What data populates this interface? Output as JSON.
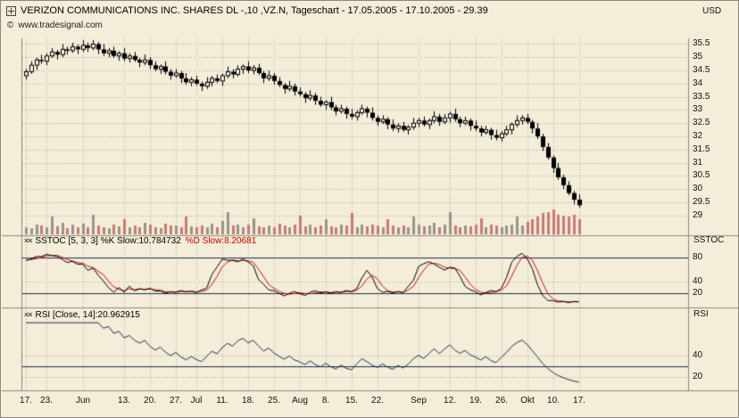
{
  "header": {
    "title": "VERIZON COMMUNICATIONS INC. SHARES DL -,10 ,VZ.N, Tageschart - 17.05.2005 - 17.10.2005 - 29.39",
    "currency": "USD",
    "copyright": "www.tradesignal.com"
  },
  "icons": {
    "copyright": "©",
    "indicator": "××"
  },
  "panels": {
    "sstoc": {
      "label": "SSTOC",
      "header_k": "SSTOC [5, 3, 3] %K Slow:10.784732",
      "header_d": "%D Slow:8.20681"
    },
    "rsi": {
      "label": "RSI",
      "header": "RSI [Close, 14]:20.962915"
    }
  },
  "colors": {
    "background": "#f3edd9",
    "grid": "#b2aa92",
    "candle": "#000000",
    "candle_up_fill": "#f7f2e2",
    "volume_up": "#98948a",
    "volume_down": "#c67b74",
    "threshold": "#1f2d52",
    "sstoc_k": "#000000",
    "sstoc_d": "#cc1111",
    "rsi_line": "#1f2d52",
    "separator": "#8f8977",
    "header_red": "#cc0000"
  },
  "chart_data": {
    "type": "candlestick",
    "title": "VERIZON COMMUNICATIONS INC. SHARES DL -,10 ,VZ.N, Tageschart",
    "date_range": "17.05.2005 - 17.10.2005",
    "last_price": 29.39,
    "unit": "USD",
    "price_ylim": [
      29,
      35.5
    ],
    "price_yticks": [
      35.5,
      35,
      34.5,
      34,
      33.5,
      33,
      32.5,
      32,
      31.5,
      31,
      30.5,
      30,
      29.5,
      29
    ],
    "x_ticks": [
      [
        "17.",
        0
      ],
      [
        "23.",
        4
      ],
      [
        "Jun",
        11
      ],
      [
        "13.",
        19
      ],
      [
        "20.",
        24
      ],
      [
        "27.",
        29
      ],
      [
        "Jul",
        33
      ],
      [
        "11.",
        38
      ],
      [
        "18.",
        43
      ],
      [
        "25.",
        48
      ],
      [
        "Aug",
        53
      ],
      [
        "8.",
        58
      ],
      [
        "15.",
        63
      ],
      [
        "22.",
        68
      ],
      [
        "Sep",
        76
      ],
      [
        "12.",
        82
      ],
      [
        "19.",
        87
      ],
      [
        "26.",
        92
      ],
      [
        "Okt",
        97
      ],
      [
        "10.",
        102
      ],
      [
        "17.",
        107
      ]
    ],
    "candles": [
      [
        34.3,
        34.55,
        34.15,
        34.45
      ],
      [
        34.45,
        34.85,
        34.37,
        34.7
      ],
      [
        34.7,
        34.98,
        34.52,
        34.9
      ],
      [
        34.9,
        35.1,
        34.75,
        34.85
      ],
      [
        34.85,
        35.15,
        34.7,
        35.05
      ],
      [
        35.05,
        35.35,
        34.97,
        35.2
      ],
      [
        35.2,
        35.28,
        34.92,
        35.1
      ],
      [
        35.1,
        35.5,
        35.0,
        35.3
      ],
      [
        35.3,
        35.4,
        35.1,
        35.25
      ],
      [
        35.25,
        35.55,
        35.17,
        35.4
      ],
      [
        35.4,
        35.48,
        35.12,
        35.3
      ],
      [
        35.3,
        35.65,
        35.2,
        35.45
      ],
      [
        35.45,
        35.55,
        35.2,
        35.35
      ],
      [
        35.35,
        35.65,
        35.27,
        35.5
      ],
      [
        35.5,
        35.58,
        35.12,
        35.3
      ],
      [
        35.3,
        35.5,
        35.05,
        35.15
      ],
      [
        35.15,
        35.35,
        35.0,
        35.25
      ],
      [
        35.25,
        35.4,
        34.97,
        35.05
      ],
      [
        35.05,
        35.23,
        34.87,
        35.15
      ],
      [
        35.15,
        35.35,
        34.85,
        34.95
      ],
      [
        34.95,
        35.15,
        34.8,
        35.05
      ],
      [
        35.05,
        35.2,
        34.82,
        34.9
      ],
      [
        34.9,
        34.98,
        34.62,
        34.8
      ],
      [
        34.8,
        35.1,
        34.7,
        34.9
      ],
      [
        34.9,
        35.0,
        34.55,
        34.7
      ],
      [
        34.7,
        34.85,
        34.47,
        34.55
      ],
      [
        34.55,
        34.73,
        34.37,
        34.65
      ],
      [
        34.65,
        34.85,
        34.35,
        34.45
      ],
      [
        34.45,
        34.55,
        34.15,
        34.3
      ],
      [
        34.3,
        34.55,
        34.22,
        34.4
      ],
      [
        34.4,
        34.48,
        34.02,
        34.2
      ],
      [
        34.2,
        34.4,
        33.95,
        34.05
      ],
      [
        34.05,
        34.25,
        33.9,
        34.15
      ],
      [
        34.15,
        34.3,
        33.92,
        34.0
      ],
      [
        34.0,
        34.08,
        33.72,
        33.9
      ],
      [
        33.9,
        34.25,
        33.8,
        34.05
      ],
      [
        34.05,
        34.3,
        33.9,
        34.2
      ],
      [
        34.2,
        34.35,
        34.02,
        34.1
      ],
      [
        34.1,
        34.38,
        33.92,
        34.3
      ],
      [
        34.3,
        34.65,
        34.2,
        34.45
      ],
      [
        34.45,
        34.55,
        34.2,
        34.35
      ],
      [
        34.35,
        34.7,
        34.27,
        34.55
      ],
      [
        34.55,
        34.73,
        34.37,
        34.65
      ],
      [
        34.65,
        34.85,
        34.4,
        34.5
      ],
      [
        34.5,
        34.7,
        34.35,
        34.6
      ],
      [
        34.6,
        34.75,
        34.32,
        34.4
      ],
      [
        34.4,
        34.48,
        34.02,
        34.2
      ],
      [
        34.2,
        34.5,
        34.1,
        34.3
      ],
      [
        34.3,
        34.4,
        33.95,
        34.1
      ],
      [
        34.1,
        34.25,
        33.87,
        33.95
      ],
      [
        33.95,
        34.03,
        33.62,
        33.8
      ],
      [
        33.8,
        34.1,
        33.7,
        33.9
      ],
      [
        33.9,
        34.0,
        33.55,
        33.7
      ],
      [
        33.7,
        33.85,
        33.52,
        33.6
      ],
      [
        33.6,
        33.68,
        33.27,
        33.45
      ],
      [
        33.45,
        33.75,
        33.35,
        33.55
      ],
      [
        33.55,
        33.65,
        33.2,
        33.35
      ],
      [
        33.35,
        33.5,
        33.12,
        33.2
      ],
      [
        33.2,
        33.38,
        33.02,
        33.3
      ],
      [
        33.3,
        33.5,
        33.0,
        33.1
      ],
      [
        33.1,
        33.2,
        32.8,
        32.95
      ],
      [
        32.95,
        33.2,
        32.87,
        33.05
      ],
      [
        33.05,
        33.13,
        32.67,
        32.85
      ],
      [
        32.85,
        33.05,
        32.65,
        32.75
      ],
      [
        32.75,
        33.0,
        32.6,
        32.9
      ],
      [
        32.9,
        33.2,
        32.82,
        33.05
      ],
      [
        33.05,
        33.13,
        32.72,
        32.9
      ],
      [
        32.9,
        33.1,
        32.6,
        32.7
      ],
      [
        32.7,
        32.8,
        32.4,
        32.55
      ],
      [
        32.55,
        32.8,
        32.47,
        32.65
      ],
      [
        32.65,
        32.73,
        32.27,
        32.45
      ],
      [
        32.45,
        32.65,
        32.2,
        32.3
      ],
      [
        32.3,
        32.5,
        32.15,
        32.4
      ],
      [
        32.4,
        32.55,
        32.17,
        32.25
      ],
      [
        32.25,
        32.43,
        32.07,
        32.35
      ],
      [
        32.35,
        32.7,
        32.25,
        32.5
      ],
      [
        32.5,
        32.7,
        32.35,
        32.6
      ],
      [
        32.6,
        32.75,
        32.37,
        32.45
      ],
      [
        32.45,
        32.68,
        32.27,
        32.6
      ],
      [
        32.6,
        32.95,
        32.5,
        32.75
      ],
      [
        32.75,
        32.85,
        32.4,
        32.55
      ],
      [
        32.55,
        32.85,
        32.47,
        32.7
      ],
      [
        32.7,
        32.93,
        32.52,
        32.85
      ],
      [
        32.85,
        33.05,
        32.55,
        32.65
      ],
      [
        32.65,
        32.75,
        32.35,
        32.5
      ],
      [
        32.5,
        32.75,
        32.42,
        32.6
      ],
      [
        32.6,
        32.68,
        32.22,
        32.4
      ],
      [
        32.4,
        32.6,
        32.2,
        32.3
      ],
      [
        32.3,
        32.4,
        32.0,
        32.15
      ],
      [
        32.15,
        32.4,
        32.07,
        32.25
      ],
      [
        32.25,
        32.33,
        31.87,
        32.05
      ],
      [
        32.05,
        32.25,
        31.85,
        31.95
      ],
      [
        31.95,
        32.2,
        31.8,
        32.1
      ],
      [
        32.1,
        32.4,
        32.02,
        32.25
      ],
      [
        32.25,
        32.53,
        32.07,
        32.45
      ],
      [
        32.45,
        32.8,
        32.35,
        32.6
      ],
      [
        32.6,
        32.8,
        32.45,
        32.7
      ],
      [
        32.7,
        32.85,
        32.47,
        32.55
      ],
      [
        32.55,
        32.63,
        32.12,
        32.3
      ],
      [
        32.3,
        32.5,
        31.9,
        32.0
      ],
      [
        32.0,
        32.1,
        31.45,
        31.6
      ],
      [
        31.6,
        31.75,
        31.12,
        31.2
      ],
      [
        31.2,
        31.28,
        30.62,
        30.8
      ],
      [
        30.8,
        31.0,
        30.35,
        30.45
      ],
      [
        30.45,
        30.55,
        30.0,
        30.15
      ],
      [
        30.15,
        30.3,
        29.77,
        29.85
      ],
      [
        29.85,
        29.93,
        29.42,
        29.6
      ],
      [
        29.6,
        29.8,
        29.29,
        29.39
      ]
    ],
    "volume_rel": [
      0.3,
      0.25,
      0.4,
      0.35,
      0.28,
      0.7,
      0.32,
      0.45,
      0.26,
      0.38,
      0.3,
      0.42,
      0.28,
      0.8,
      0.35,
      0.3,
      0.25,
      0.4,
      0.32,
      0.6,
      0.28,
      0.35,
      0.3,
      0.45,
      0.38,
      0.3,
      0.26,
      0.42,
      0.35,
      0.35,
      0.3,
      0.7,
      0.33,
      0.28,
      0.36,
      0.3,
      0.44,
      0.3,
      0.52,
      0.9,
      0.34,
      0.4,
      0.3,
      0.38,
      0.65,
      0.32,
      0.28,
      0.36,
      0.3,
      0.42,
      0.35,
      0.3,
      0.4,
      0.75,
      0.32,
      0.38,
      0.3,
      0.35,
      0.6,
      0.33,
      0.28,
      0.4,
      0.35,
      0.85,
      0.3,
      0.38,
      0.32,
      0.4,
      0.35,
      0.3,
      0.6,
      0.36,
      0.3,
      0.34,
      0.28,
      0.7,
      0.4,
      0.32,
      0.36,
      0.45,
      0.3,
      0.38,
      0.9,
      0.34,
      0.3,
      0.36,
      0.32,
      0.4,
      0.65,
      0.3,
      0.38,
      0.34,
      0.3,
      0.36,
      0.4,
      0.7,
      0.35,
      0.5,
      0.6,
      0.7,
      0.85,
      0.9,
      1.0,
      0.8,
      0.75,
      0.7,
      0.8,
      0.6
    ],
    "panels": [
      {
        "type": "line",
        "name": "SSTOC",
        "params": [
          5,
          3,
          3
        ],
        "series": [
          "%K Slow",
          "%D Slow"
        ],
        "last_values": [
          10.784732,
          8.20681
        ],
        "ylim": [
          0,
          100
        ],
        "yticks": [
          80,
          40,
          20
        ],
        "reference_lines": [
          80,
          20
        ]
      },
      {
        "type": "line",
        "name": "RSI",
        "params": [
          "Close",
          14
        ],
        "last_value": 20.962915,
        "ylim": [
          10,
          75
        ],
        "yticks": [
          40,
          20
        ],
        "reference_lines": [
          30
        ]
      }
    ]
  }
}
